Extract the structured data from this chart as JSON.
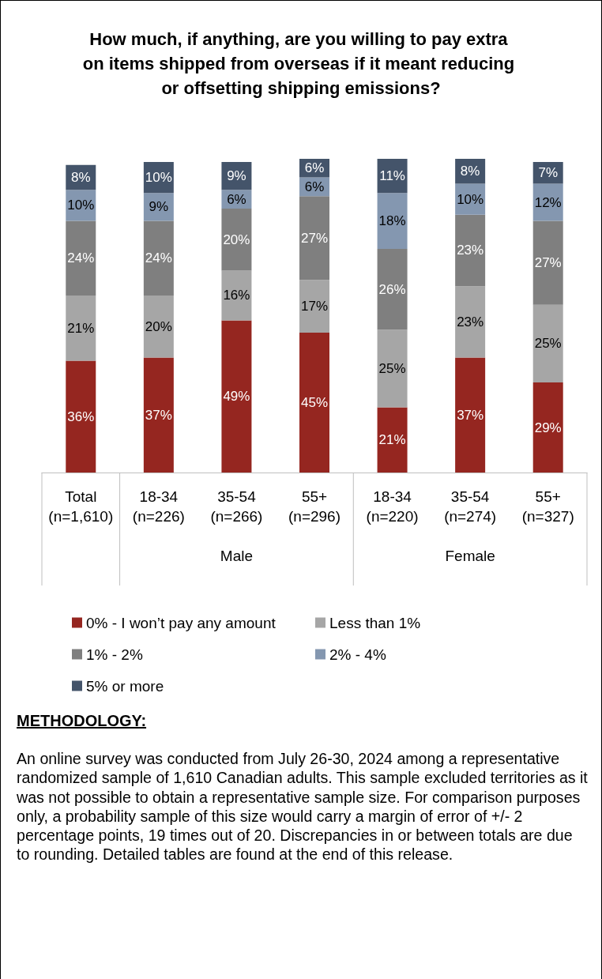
{
  "chart_data": {
    "type": "bar",
    "stacked": true,
    "title": "How much, if anything, are you willing to pay extra on items shipped from overseas if it meant reducing or offsetting shipping emissions?",
    "categories": [
      "Total (n=1,610)",
      "18-34 (n=226)",
      "35-54 (n=266)",
      "55+ (n=296)",
      "18-34 (n=220)",
      "35-54 (n=274)",
      "55+ (n=327)"
    ],
    "series": [
      {
        "name": "0% - I won’t pay any amount",
        "color": "#952620",
        "values": [
          36,
          37,
          49,
          45,
          21,
          37,
          29
        ],
        "value_labels": [
          "36%",
          "37%",
          "49%",
          "45%",
          "21%",
          "37%",
          "29%"
        ]
      },
      {
        "name": "Less than 1%",
        "color": "#a6a6a6",
        "values": [
          21,
          20,
          16,
          17,
          25,
          23,
          25
        ],
        "value_labels": [
          "21%",
          "20%",
          "16%",
          "17%",
          "25%",
          "23%",
          "25%"
        ]
      },
      {
        "name": "1% - 2%",
        "color": "#7f7f7f",
        "values": [
          24,
          24,
          20,
          27,
          26,
          23,
          27
        ],
        "value_labels": [
          "24%",
          "24%",
          "20%",
          "27%",
          "26%",
          "23%",
          "27%"
        ]
      },
      {
        "name": "2% - 4%",
        "color": "#8497b0",
        "values": [
          10,
          9,
          6,
          6,
          18,
          10,
          12
        ],
        "value_labels": [
          "10%",
          "9%",
          "6%",
          "6%",
          "18%",
          "10%",
          "12%"
        ]
      },
      {
        "name": "5% or more",
        "color": "#44546a",
        "values": [
          8,
          10,
          9,
          6,
          11,
          8,
          7
        ],
        "value_labels": [
          "8%",
          "10%",
          "9%",
          "6%",
          "11%",
          "8%",
          "7%"
        ]
      }
    ],
    "legend": "bottom",
    "annotations": [
      "Male",
      "Female",
      "METHODOLOGY:",
      "An online survey was conducted from July 26-30, 2024 among a representative randomized sample of 1,610 Canadian adults. This sample excluded territories as it was not possible to obtain a representative sample size. For comparison purposes only, a probability sample of this size would carry a margin of error of +/- 2 percentage points, 19 times out of 20. Discrepancies in or between totals are due to rounding. Detailed tables are found at the end of this release."
    ]
  }
}
